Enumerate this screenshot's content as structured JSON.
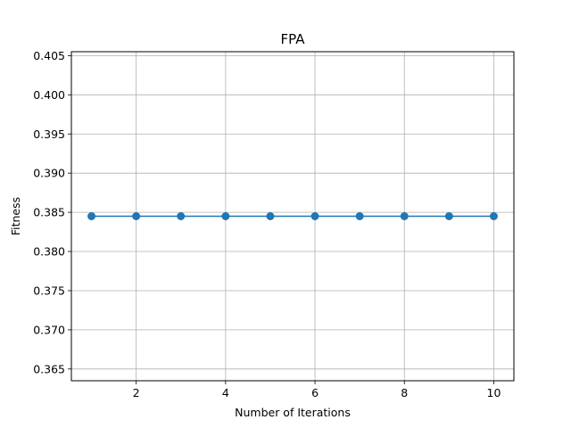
{
  "chart_data": {
    "type": "line",
    "title": "FPA",
    "xlabel": "Number of Iterations",
    "ylabel": "Fitness",
    "x": [
      1,
      2,
      3,
      4,
      5,
      6,
      7,
      8,
      9,
      10
    ],
    "series": [
      {
        "values": [
          0.3845,
          0.3845,
          0.3845,
          0.3845,
          0.3845,
          0.3845,
          0.3845,
          0.3845,
          0.3845,
          0.3845
        ],
        "color": "#1f77b4",
        "marker": "circle"
      }
    ],
    "xlim": [
      0.55,
      10.45
    ],
    "ylim": [
      0.3635,
      0.4055
    ],
    "xticks": [
      2,
      4,
      6,
      8,
      10
    ],
    "xtick_labels": [
      "2",
      "4",
      "6",
      "8",
      "10"
    ],
    "yticks": [
      0.365,
      0.37,
      0.375,
      0.38,
      0.385,
      0.39,
      0.395,
      0.4,
      0.405
    ],
    "ytick_labels": [
      "0.365",
      "0.370",
      "0.375",
      "0.380",
      "0.385",
      "0.390",
      "0.395",
      "0.400",
      "0.405"
    ],
    "grid": true,
    "grid_color": "#b0b0b0"
  }
}
